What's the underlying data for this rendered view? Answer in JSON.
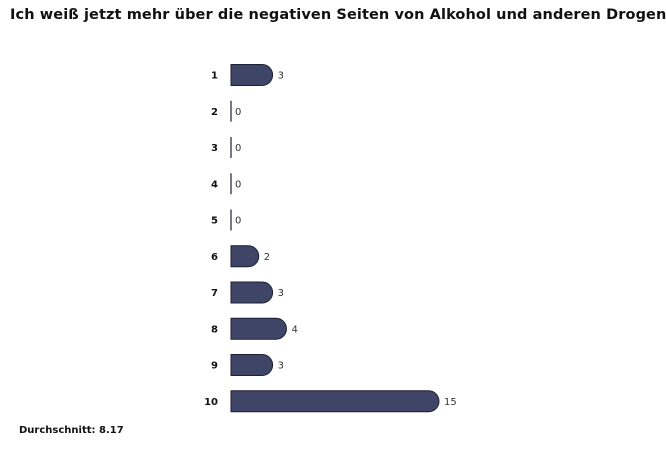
{
  "title": "Ich weiß jetzt mehr über die negativen Seiten von Alkohol und anderen Drogen.",
  "average_text": "Durchschnitt: 8.17",
  "colors": {
    "bar_fill": "#3f4566",
    "bar_stroke": "#1c1f33"
  },
  "chart_data": {
    "type": "bar",
    "orientation": "horizontal",
    "categories": [
      "1",
      "2",
      "3",
      "4",
      "5",
      "6",
      "7",
      "8",
      "9",
      "10"
    ],
    "values": [
      3,
      0,
      0,
      0,
      0,
      2,
      3,
      4,
      3,
      15
    ],
    "title": "Ich weiß jetzt mehr über die negativen Seiten von Alkohol und anderen Drogen.",
    "xlabel": "",
    "ylabel": "",
    "xlim": [
      0,
      15
    ],
    "grid": false,
    "legend": "none"
  }
}
